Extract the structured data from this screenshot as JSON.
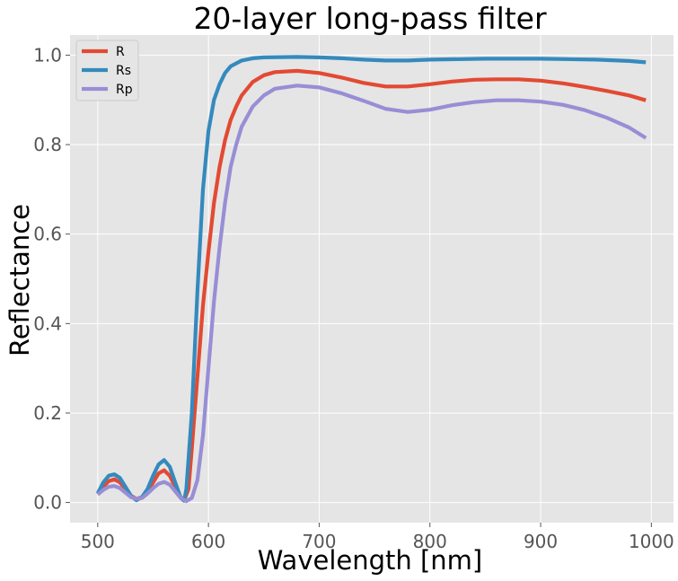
{
  "chart_data": {
    "type": "line",
    "title": "20-layer long-pass filter",
    "xlabel": "Wavelength [nm]",
    "ylabel": "Reflectance",
    "xlim": [
      475,
      1020
    ],
    "ylim": [
      -0.045,
      1.045
    ],
    "xticks": [
      500,
      600,
      700,
      800,
      900,
      1000
    ],
    "yticks": [
      0.0,
      0.2,
      0.4,
      0.6,
      0.8,
      1.0
    ],
    "xtick_labels": [
      "500",
      "600",
      "700",
      "800",
      "900",
      "1000"
    ],
    "ytick_labels": [
      "0.0",
      "0.2",
      "0.4",
      "0.6",
      "0.8",
      "1.0"
    ],
    "grid": true,
    "legend_position": "upper-left",
    "style": "ggplot",
    "series": [
      {
        "name": "R",
        "color": "#e24a33",
        "points": [
          [
            500,
            0.02
          ],
          [
            505,
            0.035
          ],
          [
            510,
            0.048
          ],
          [
            515,
            0.052
          ],
          [
            520,
            0.045
          ],
          [
            525,
            0.03
          ],
          [
            530,
            0.015
          ],
          [
            535,
            0.008
          ],
          [
            540,
            0.012
          ],
          [
            545,
            0.025
          ],
          [
            550,
            0.045
          ],
          [
            555,
            0.065
          ],
          [
            560,
            0.072
          ],
          [
            565,
            0.06
          ],
          [
            570,
            0.035
          ],
          [
            575,
            0.012
          ],
          [
            578,
            0.005
          ],
          [
            582,
            0.03
          ],
          [
            585,
            0.12
          ],
          [
            590,
            0.28
          ],
          [
            595,
            0.44
          ],
          [
            600,
            0.56
          ],
          [
            605,
            0.67
          ],
          [
            610,
            0.75
          ],
          [
            615,
            0.81
          ],
          [
            620,
            0.855
          ],
          [
            625,
            0.885
          ],
          [
            630,
            0.91
          ],
          [
            640,
            0.94
          ],
          [
            650,
            0.955
          ],
          [
            660,
            0.962
          ],
          [
            680,
            0.965
          ],
          [
            700,
            0.96
          ],
          [
            720,
            0.95
          ],
          [
            740,
            0.938
          ],
          [
            760,
            0.93
          ],
          [
            780,
            0.93
          ],
          [
            800,
            0.935
          ],
          [
            820,
            0.941
          ],
          [
            840,
            0.945
          ],
          [
            860,
            0.946
          ],
          [
            880,
            0.946
          ],
          [
            900,
            0.943
          ],
          [
            920,
            0.937
          ],
          [
            940,
            0.929
          ],
          [
            960,
            0.92
          ],
          [
            980,
            0.91
          ],
          [
            995,
            0.899
          ]
        ]
      },
      {
        "name": "Rs",
        "color": "#348abd",
        "points": [
          [
            500,
            0.02
          ],
          [
            505,
            0.045
          ],
          [
            510,
            0.06
          ],
          [
            515,
            0.063
          ],
          [
            520,
            0.055
          ],
          [
            525,
            0.035
          ],
          [
            530,
            0.015
          ],
          [
            535,
            0.005
          ],
          [
            540,
            0.012
          ],
          [
            545,
            0.03
          ],
          [
            550,
            0.06
          ],
          [
            555,
            0.085
          ],
          [
            560,
            0.095
          ],
          [
            565,
            0.08
          ],
          [
            570,
            0.045
          ],
          [
            575,
            0.01
          ],
          [
            578,
            0.004
          ],
          [
            580,
            0.03
          ],
          [
            585,
            0.2
          ],
          [
            590,
            0.47
          ],
          [
            595,
            0.7
          ],
          [
            600,
            0.83
          ],
          [
            605,
            0.9
          ],
          [
            610,
            0.935
          ],
          [
            615,
            0.96
          ],
          [
            620,
            0.975
          ],
          [
            630,
            0.988
          ],
          [
            640,
            0.993
          ],
          [
            650,
            0.995
          ],
          [
            680,
            0.996
          ],
          [
            700,
            0.995
          ],
          [
            720,
            0.993
          ],
          [
            740,
            0.99
          ],
          [
            760,
            0.988
          ],
          [
            780,
            0.988
          ],
          [
            800,
            0.99
          ],
          [
            850,
            0.992
          ],
          [
            900,
            0.992
          ],
          [
            950,
            0.99
          ],
          [
            980,
            0.987
          ],
          [
            995,
            0.984
          ]
        ]
      },
      {
        "name": "Rp",
        "color": "#988ed5",
        "points": [
          [
            500,
            0.018
          ],
          [
            505,
            0.028
          ],
          [
            510,
            0.035
          ],
          [
            515,
            0.037
          ],
          [
            520,
            0.032
          ],
          [
            525,
            0.022
          ],
          [
            530,
            0.012
          ],
          [
            535,
            0.008
          ],
          [
            540,
            0.01
          ],
          [
            545,
            0.02
          ],
          [
            550,
            0.032
          ],
          [
            555,
            0.042
          ],
          [
            560,
            0.046
          ],
          [
            565,
            0.04
          ],
          [
            570,
            0.025
          ],
          [
            575,
            0.01
          ],
          [
            580,
            0.003
          ],
          [
            585,
            0.01
          ],
          [
            590,
            0.05
          ],
          [
            595,
            0.15
          ],
          [
            600,
            0.3
          ],
          [
            605,
            0.45
          ],
          [
            610,
            0.57
          ],
          [
            615,
            0.67
          ],
          [
            620,
            0.75
          ],
          [
            625,
            0.8
          ],
          [
            630,
            0.84
          ],
          [
            640,
            0.885
          ],
          [
            650,
            0.91
          ],
          [
            660,
            0.925
          ],
          [
            680,
            0.932
          ],
          [
            700,
            0.928
          ],
          [
            720,
            0.915
          ],
          [
            740,
            0.898
          ],
          [
            760,
            0.88
          ],
          [
            780,
            0.873
          ],
          [
            800,
            0.878
          ],
          [
            820,
            0.888
          ],
          [
            840,
            0.895
          ],
          [
            860,
            0.899
          ],
          [
            880,
            0.899
          ],
          [
            900,
            0.896
          ],
          [
            920,
            0.889
          ],
          [
            940,
            0.877
          ],
          [
            960,
            0.86
          ],
          [
            980,
            0.838
          ],
          [
            995,
            0.815
          ]
        ]
      }
    ]
  }
}
